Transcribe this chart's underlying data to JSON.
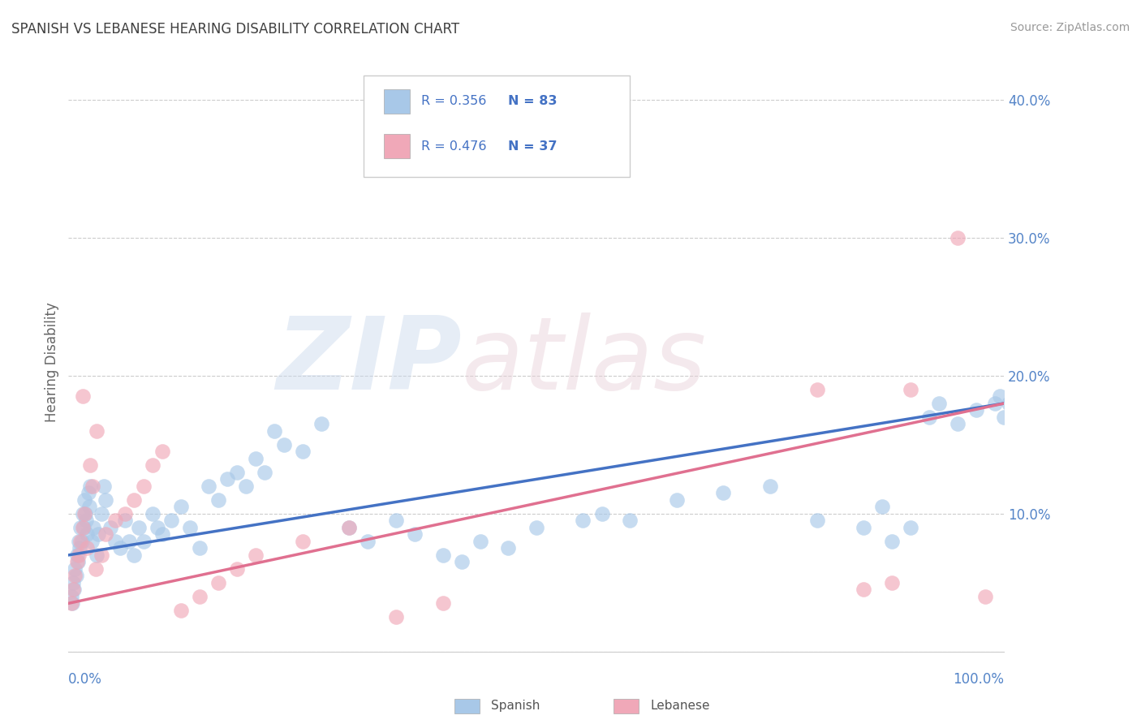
{
  "title": "SPANISH VS LEBANESE HEARING DISABILITY CORRELATION CHART",
  "source": "Source: ZipAtlas.com",
  "ylabel": "Hearing Disability",
  "spanish_R": 0.356,
  "spanish_N": 83,
  "lebanese_R": 0.476,
  "lebanese_N": 37,
  "spanish_color": "#a8c8e8",
  "lebanese_color": "#f0a8b8",
  "spanish_line_color": "#4472C4",
  "lebanese_line_color": "#E07090",
  "title_color": "#404040",
  "legend_text_color": "#4472C4",
  "axis_label_color": "#5585C8",
  "grid_color": "#cccccc",
  "background_color": "#ffffff",
  "xlim": [
    0,
    100
  ],
  "ylim": [
    0,
    42
  ],
  "yticks": [
    0,
    10,
    20,
    30,
    40
  ],
  "ytick_labels": [
    "",
    "10.0%",
    "20.0%",
    "30.0%",
    "40.0%"
  ],
  "sp_line_x0": 0,
  "sp_line_y0": 7.0,
  "sp_line_x1": 100,
  "sp_line_y1": 18.0,
  "lb_line_x0": 0,
  "lb_line_y0": 3.5,
  "lb_line_x1": 100,
  "lb_line_y1": 18.0,
  "spanish_x": [
    0.3,
    0.4,
    0.5,
    0.6,
    0.7,
    0.8,
    0.9,
    1.0,
    1.1,
    1.2,
    1.3,
    1.4,
    1.5,
    1.6,
    1.7,
    1.8,
    1.9,
    2.0,
    2.1,
    2.2,
    2.3,
    2.5,
    2.7,
    3.0,
    3.2,
    3.5,
    3.8,
    4.0,
    4.5,
    5.0,
    5.5,
    6.0,
    6.5,
    7.0,
    7.5,
    8.0,
    9.0,
    9.5,
    10.0,
    11.0,
    12.0,
    13.0,
    14.0,
    15.0,
    16.0,
    17.0,
    18.0,
    19.0,
    20.0,
    21.0,
    22.0,
    23.0,
    25.0,
    27.0,
    30.0,
    32.0,
    35.0,
    37.0,
    40.0,
    42.0,
    44.0,
    47.0,
    50.0,
    55.0,
    57.0,
    60.0,
    65.0,
    70.0,
    75.0,
    80.0,
    85.0,
    87.0,
    88.0,
    90.0,
    92.0,
    93.0,
    95.0,
    97.0,
    99.0,
    99.5,
    100.0,
    100.5,
    101.0
  ],
  "spanish_y": [
    4.0,
    3.5,
    5.0,
    4.5,
    6.0,
    5.5,
    7.0,
    6.5,
    8.0,
    7.5,
    9.0,
    8.0,
    10.0,
    9.0,
    11.0,
    10.0,
    9.5,
    8.5,
    11.5,
    10.5,
    12.0,
    8.0,
    9.0,
    7.0,
    8.5,
    10.0,
    12.0,
    11.0,
    9.0,
    8.0,
    7.5,
    9.5,
    8.0,
    7.0,
    9.0,
    8.0,
    10.0,
    9.0,
    8.5,
    9.5,
    10.5,
    9.0,
    7.5,
    12.0,
    11.0,
    12.5,
    13.0,
    12.0,
    14.0,
    13.0,
    16.0,
    15.0,
    14.5,
    16.5,
    9.0,
    8.0,
    9.5,
    8.5,
    7.0,
    6.5,
    8.0,
    7.5,
    9.0,
    9.5,
    10.0,
    9.5,
    11.0,
    11.5,
    12.0,
    9.5,
    9.0,
    10.5,
    8.0,
    9.0,
    17.0,
    18.0,
    16.5,
    17.5,
    18.0,
    18.5,
    17.0,
    18.0,
    17.5
  ],
  "lebanese_x": [
    0.3,
    0.5,
    0.7,
    0.9,
    1.1,
    1.3,
    1.5,
    1.7,
    2.0,
    2.3,
    2.6,
    2.9,
    3.5,
    4.0,
    5.0,
    6.0,
    7.0,
    8.0,
    9.0,
    10.0,
    12.0,
    14.0,
    16.0,
    18.0,
    20.0,
    25.0,
    30.0,
    35.0,
    40.0,
    80.0,
    85.0,
    88.0,
    90.0,
    95.0,
    98.0,
    1.5,
    3.0
  ],
  "lebanese_y": [
    3.5,
    4.5,
    5.5,
    6.5,
    7.0,
    8.0,
    9.0,
    10.0,
    7.5,
    13.5,
    12.0,
    6.0,
    7.0,
    8.5,
    9.5,
    10.0,
    11.0,
    12.0,
    13.5,
    14.5,
    3.0,
    4.0,
    5.0,
    6.0,
    7.0,
    8.0,
    9.0,
    2.5,
    3.5,
    19.0,
    4.5,
    5.0,
    19.0,
    30.0,
    4.0,
    18.5,
    16.0
  ]
}
